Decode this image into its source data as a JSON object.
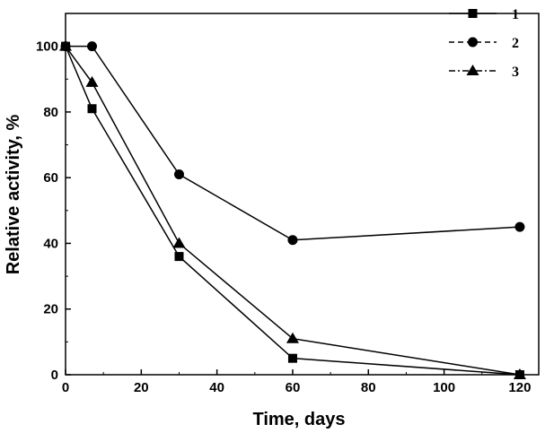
{
  "chart_data": {
    "type": "line",
    "title": "",
    "xlabel": "Time, days",
    "ylabel": "Relative activity, %",
    "xlim": [
      0,
      125
    ],
    "ylim": [
      0,
      110
    ],
    "xticks": [
      0,
      20,
      40,
      60,
      80,
      100,
      120
    ],
    "yticks": [
      0,
      20,
      40,
      60,
      80,
      100
    ],
    "grid": false,
    "legend_position": "top-right",
    "series": [
      {
        "name": "1",
        "marker": "square",
        "line_style": "solid",
        "color": "#000000",
        "x": [
          0,
          7,
          30,
          60,
          120
        ],
        "y": [
          100,
          81,
          36,
          5,
          0
        ]
      },
      {
        "name": "2",
        "marker": "circle",
        "line_style": "dashed",
        "color": "#000000",
        "x": [
          0,
          7,
          30,
          60,
          120
        ],
        "y": [
          100,
          100,
          61,
          41,
          45
        ]
      },
      {
        "name": "3",
        "marker": "triangle",
        "line_style": "dashdot",
        "color": "#000000",
        "x": [
          0,
          7,
          30,
          60,
          120
        ],
        "y": [
          100,
          89,
          40,
          11,
          0
        ]
      }
    ]
  }
}
